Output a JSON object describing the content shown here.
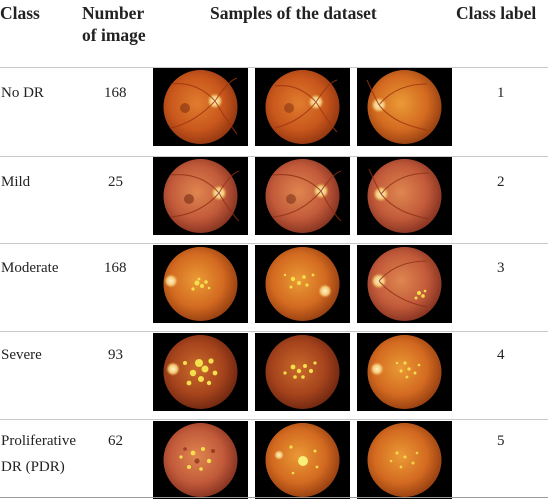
{
  "header": {
    "class": "Class",
    "number_line1": "Number",
    "number_line2": "of image",
    "samples": "Samples of the dataset",
    "class_label": "Class label"
  },
  "rows": [
    {
      "class": "No DR",
      "count": "168",
      "label": "1"
    },
    {
      "class": "Mild",
      "count": "25",
      "label": "2"
    },
    {
      "class": "Moderate",
      "count": "168",
      "label": "3"
    },
    {
      "class": "Severe",
      "count": "93",
      "label": "4"
    },
    {
      "class_line1": "Proliferative",
      "class_line2": "DR (PDR)",
      "count": "62",
      "label": "5"
    }
  ]
}
